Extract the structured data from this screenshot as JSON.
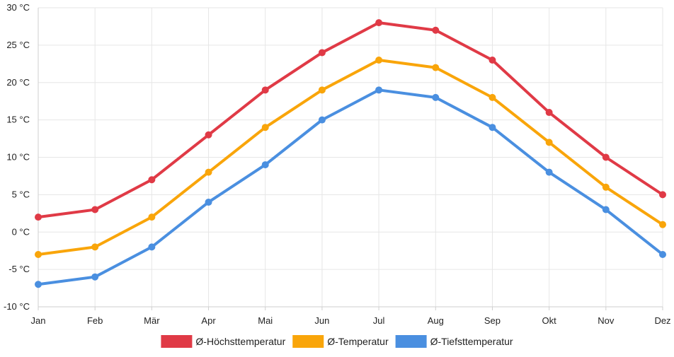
{
  "chart_data": {
    "type": "line",
    "title": "",
    "xlabel": "",
    "ylabel": "",
    "categories": [
      "Jan",
      "Feb",
      "Mär",
      "Apr",
      "Mai",
      "Jun",
      "Jul",
      "Aug",
      "Sep",
      "Okt",
      "Nov",
      "Dez"
    ],
    "y_unit": "°C",
    "ylim": [
      -10,
      30
    ],
    "y_ticks": [
      -10,
      -5,
      0,
      5,
      10,
      15,
      20,
      25,
      30
    ],
    "y_tick_labels": [
      "-10 °C",
      "-5 °C",
      "0 °C",
      "5 °C",
      "10 °C",
      "15 °C",
      "20 °C",
      "25 °C",
      "30 °C"
    ],
    "grid": true,
    "legend_position": "bottom",
    "series": [
      {
        "name": "Ø-Höchsttemperatur",
        "color": "#e03a46",
        "values": [
          2,
          3,
          7,
          13,
          19,
          24,
          28,
          27,
          23,
          16,
          10,
          5
        ]
      },
      {
        "name": "Ø-Temperatur",
        "color": "#f9a50a",
        "values": [
          -3,
          -2,
          2,
          8,
          14,
          19,
          23,
          22,
          18,
          12,
          6,
          1
        ]
      },
      {
        "name": "Ø-Tiefsttemperatur",
        "color": "#4a8fe0",
        "values": [
          -7,
          -6,
          -2,
          4,
          9,
          15,
          19,
          18,
          14,
          8,
          3,
          -3
        ]
      }
    ]
  }
}
